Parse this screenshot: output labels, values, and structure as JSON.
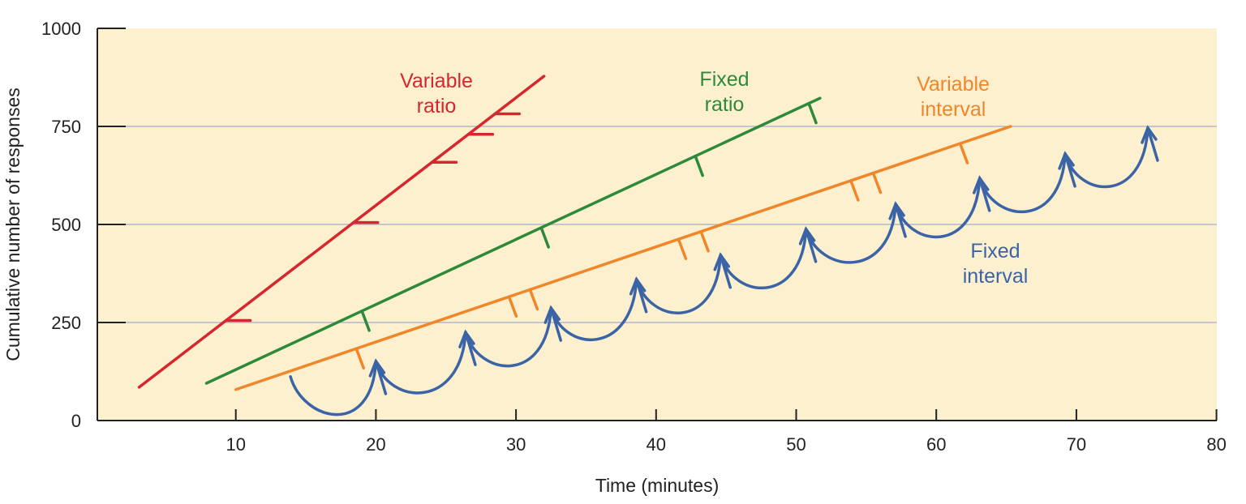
{
  "chart_data": {
    "type": "line",
    "xlabel": "Time (minutes)",
    "ylabel": "Cumulative number of responses",
    "xlim": [
      0,
      80
    ],
    "ylim": [
      0,
      1000
    ],
    "x_ticks": [
      10,
      20,
      30,
      40,
      50,
      60,
      70,
      80
    ],
    "y_ticks": [
      0,
      250,
      500,
      750,
      1000
    ],
    "grid": "horizontal at 250, 500, 750",
    "background": "#fdf0cf",
    "series": [
      {
        "name": "Variable ratio",
        "label_lines": [
          "Variable",
          "ratio"
        ],
        "color": "#d6262e",
        "kind": "straight",
        "points": [
          [
            3.1,
            85
          ],
          [
            32.0,
            878
          ]
        ],
        "reinforcement_marks_x": [
          9.3,
          18.4,
          24.0,
          26.6,
          28.5
        ],
        "mark_style": "horizontal"
      },
      {
        "name": "Fixed ratio",
        "label_lines": [
          "Fixed",
          "ratio"
        ],
        "color": "#2e8a3a",
        "kind": "straight",
        "points": [
          [
            7.9,
            95
          ],
          [
            51.7,
            822
          ]
        ],
        "reinforcement_marks_x": [
          19.0,
          31.8,
          42.8,
          50.9
        ],
        "mark_style": "down"
      },
      {
        "name": "Variable interval",
        "label_lines": [
          "Variable",
          "interval"
        ],
        "color": "#f0862a",
        "kind": "straight",
        "points": [
          [
            10.0,
            79
          ],
          [
            65.3,
            750
          ]
        ],
        "reinforcement_marks_x": [
          18.6,
          29.5,
          31.0,
          41.6,
          43.2,
          53.9,
          55.5,
          61.7
        ],
        "mark_style": "down"
      },
      {
        "name": "Fixed interval",
        "label_lines": [
          "Fixed",
          "interval"
        ],
        "color": "#3b64a6",
        "kind": "scallop",
        "start": [
          13.9,
          112
        ],
        "peaks": [
          [
            20.0,
            151
          ],
          [
            26.4,
            225
          ],
          [
            32.5,
            287
          ],
          [
            38.6,
            360
          ],
          [
            44.6,
            422
          ],
          [
            50.7,
            488
          ],
          [
            57.1,
            552
          ],
          [
            63.1,
            618
          ],
          [
            69.2,
            680
          ],
          [
            75.1,
            746
          ]
        ]
      }
    ]
  }
}
